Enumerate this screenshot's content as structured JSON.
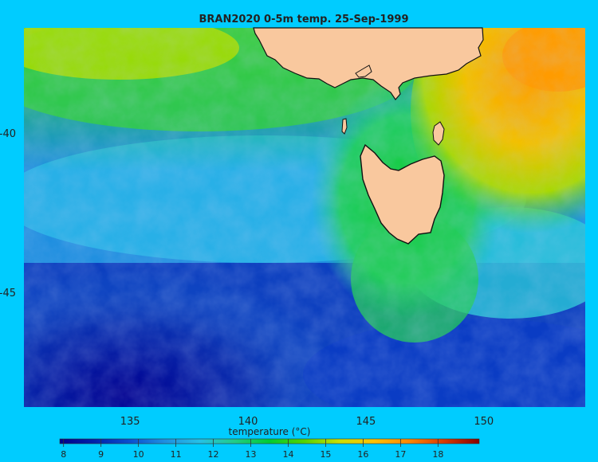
{
  "title": "BRAN2020 0-5m temp. 25-Sep-1999",
  "map": {
    "x_ticks": [
      135,
      140,
      145,
      150
    ],
    "x_tick_labels": [
      "135",
      "140",
      "145",
      "150"
    ],
    "y_ticks": [
      -40,
      -45
    ],
    "y_tick_labels": [
      "-40",
      "-45"
    ],
    "lon_range": [
      130.5,
      154.3
    ],
    "lat_range": [
      -48.6,
      -36.7
    ],
    "land_color": "#f9c89e",
    "background_color": "#00ccff"
  },
  "colorbar": {
    "label": "temperature (°C)",
    "ticks": [
      8,
      9,
      10,
      11,
      12,
      13,
      14,
      15,
      16,
      17,
      18
    ],
    "tick_labels": [
      "8",
      "9",
      "10",
      "11",
      "12",
      "13",
      "14",
      "15",
      "16",
      "17",
      "18"
    ],
    "range": [
      7.9,
      19.1
    ],
    "colormap": [
      "#00008b",
      "#0022aa",
      "#0a4fcf",
      "#1e8fe0",
      "#25c0e6",
      "#22cc88",
      "#00cc33",
      "#55d400",
      "#cce000",
      "#ffc200",
      "#ff8800",
      "#d83a00",
      "#880000"
    ]
  }
}
